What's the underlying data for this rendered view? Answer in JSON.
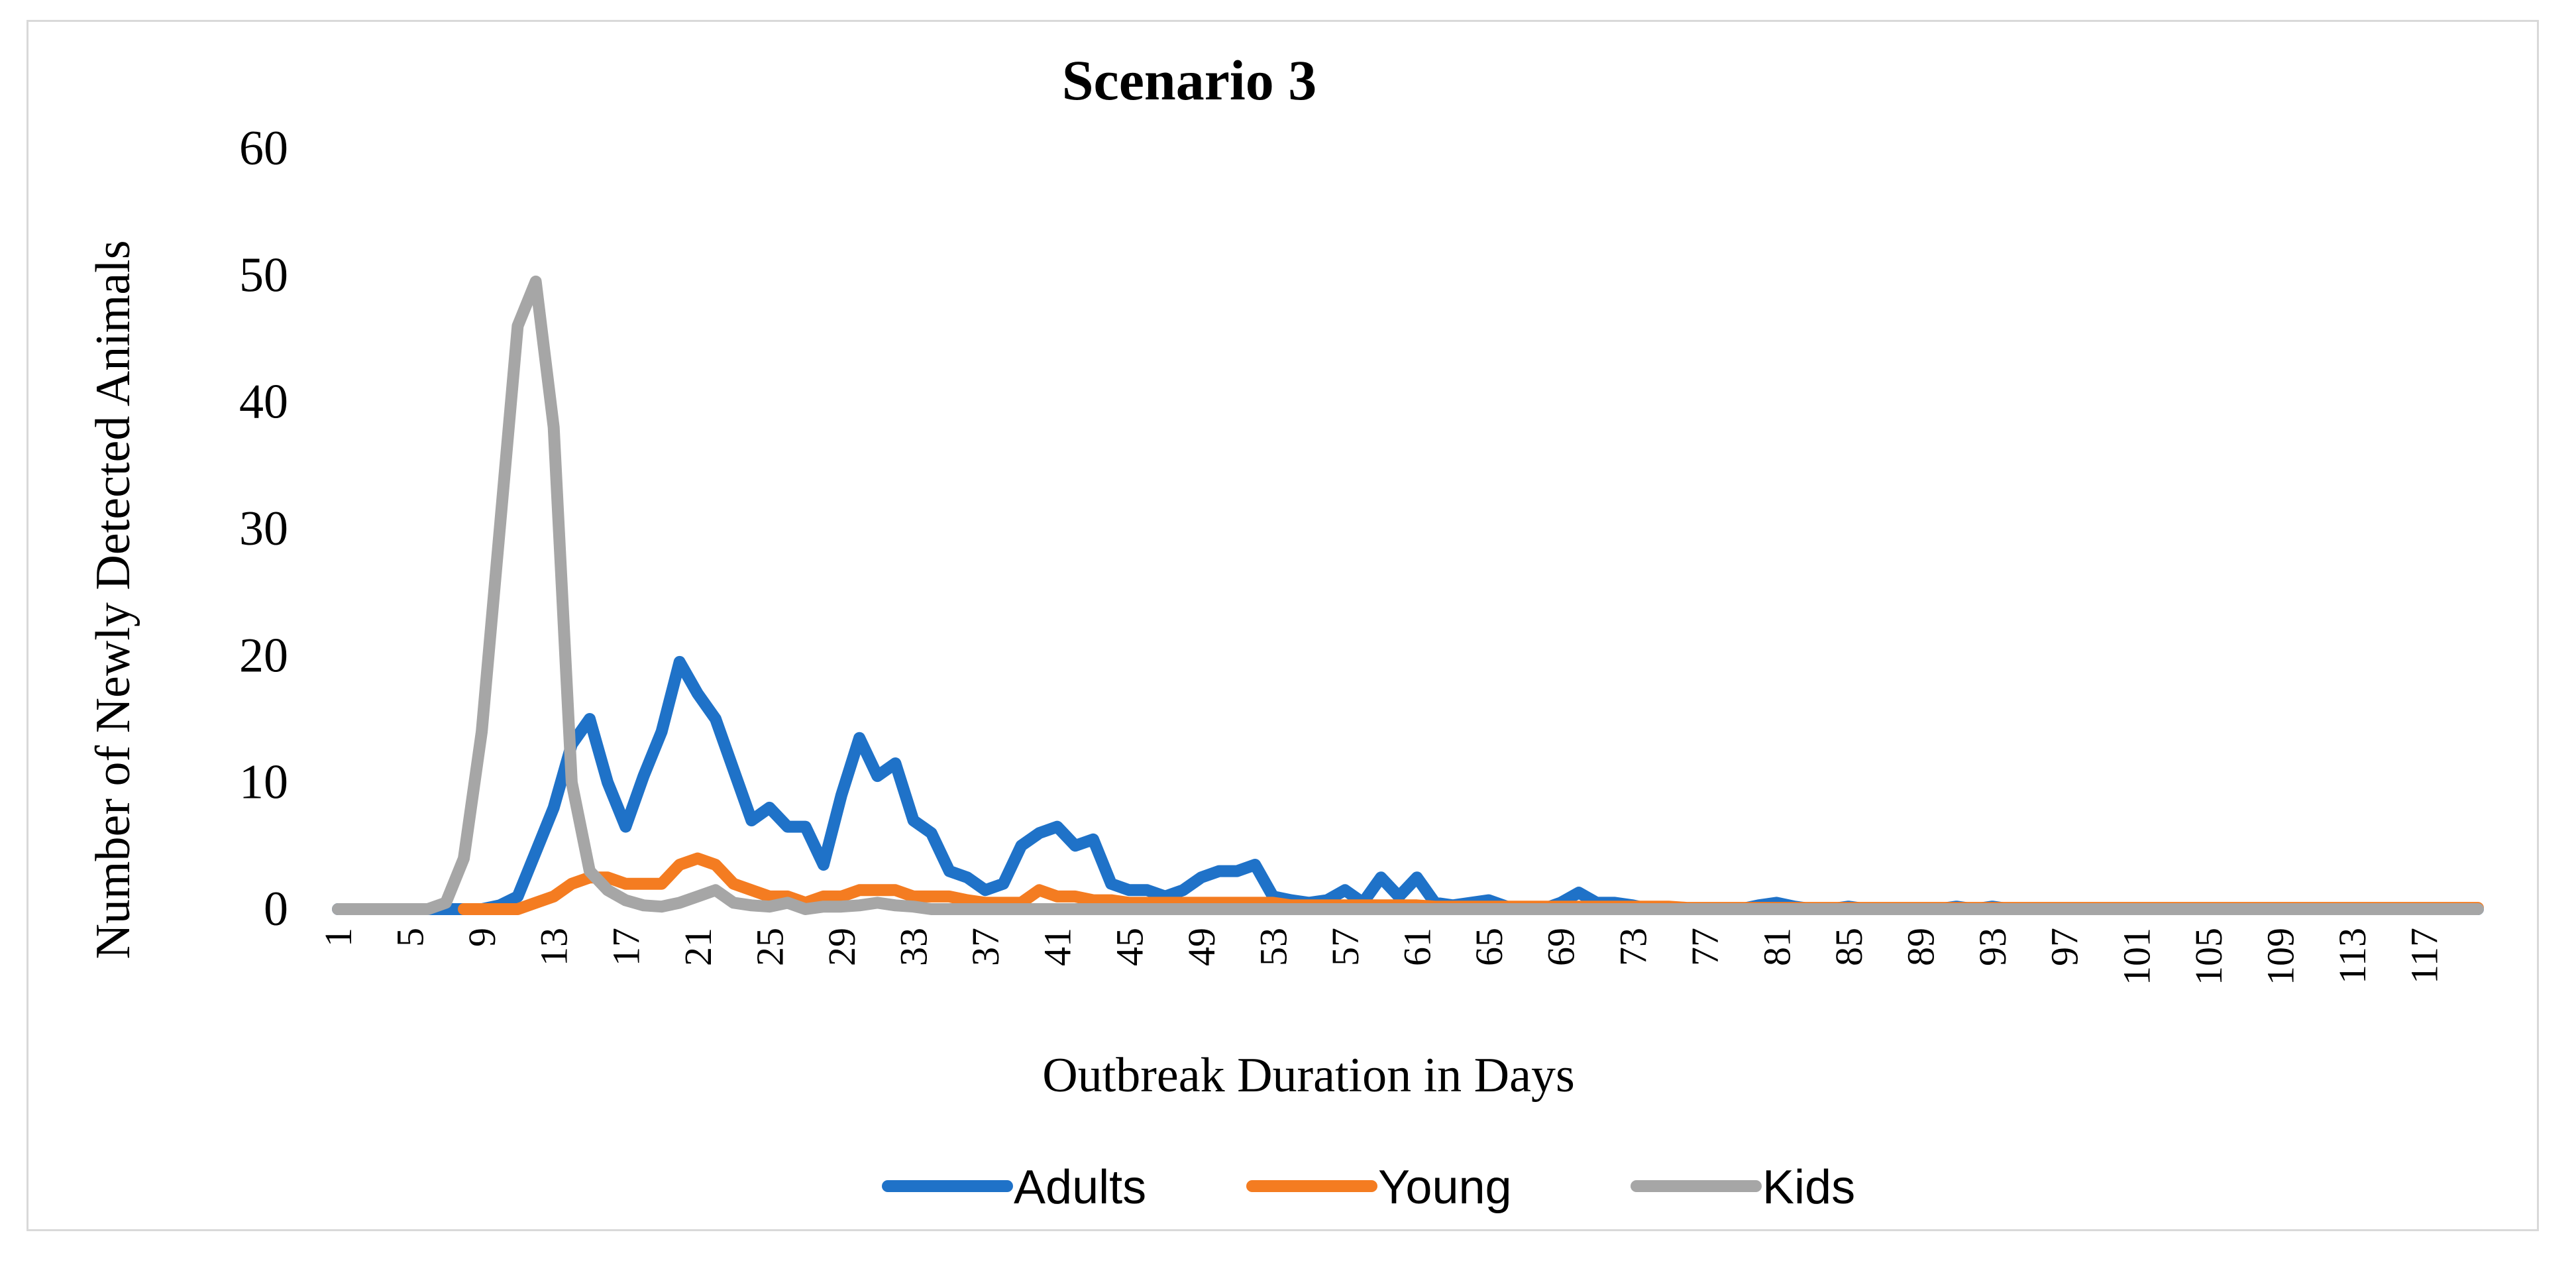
{
  "chart_data": {
    "type": "line",
    "title": "Scenario 3",
    "xlabel": "Outbreak Duration in Days",
    "ylabel": "Number of Newly Detected Animals",
    "ylim": [
      0,
      60
    ],
    "yticks": [
      0,
      10,
      20,
      30,
      40,
      50,
      60
    ],
    "x_start": 1,
    "x_end": 120,
    "xticks": [
      1,
      5,
      9,
      13,
      17,
      21,
      25,
      29,
      33,
      37,
      41,
      45,
      49,
      53,
      57,
      61,
      65,
      69,
      73,
      77,
      81,
      85,
      89,
      93,
      97,
      101,
      105,
      109,
      113,
      117
    ],
    "grid": false,
    "legend_position": "bottom",
    "colors": {
      "Adults": "#1f72c8",
      "Young": "#f47c21",
      "Kids": "#a6a6a6"
    },
    "series": [
      {
        "name": "Adults",
        "x": [
          1,
          2,
          3,
          4,
          5,
          6,
          7,
          8,
          9,
          10,
          11,
          12,
          13,
          14,
          15,
          16,
          17,
          18,
          19,
          20,
          21,
          22,
          23,
          24,
          25,
          26,
          27,
          28,
          29,
          30,
          31,
          32,
          33,
          34,
          35,
          36,
          37,
          38,
          39,
          40,
          41,
          42,
          43,
          44,
          45,
          46,
          47,
          48,
          49,
          50,
          51,
          52,
          53,
          54,
          55,
          56,
          57,
          58,
          59,
          60,
          61,
          62,
          63,
          64,
          65,
          66,
          67,
          68,
          69,
          70,
          71,
          72,
          73,
          74,
          75,
          76,
          77,
          78,
          79,
          80,
          81,
          82,
          83,
          84,
          85,
          86,
          87,
          88,
          89,
          90,
          91,
          92,
          93,
          94,
          95,
          96,
          97,
          98,
          99,
          100,
          101,
          102,
          103,
          104,
          105,
          106,
          107,
          108,
          109,
          110,
          111,
          112,
          113,
          114,
          115,
          116,
          117,
          118,
          119,
          120
        ],
        "values": [
          0,
          0,
          0,
          0,
          0,
          0,
          0,
          0,
          0,
          0.3,
          1,
          4.5,
          8,
          13,
          15,
          10,
          6.5,
          10.5,
          14,
          19.5,
          17,
          15,
          11,
          7,
          8,
          6.5,
          6.5,
          3.5,
          9,
          13.5,
          10.5,
          11.5,
          7,
          6,
          3,
          2.5,
          1.5,
          2,
          5,
          6,
          6.5,
          5,
          5.5,
          2,
          1.5,
          1.5,
          1,
          1.5,
          2.5,
          3,
          3,
          3.5,
          1,
          0.7,
          0.5,
          0.7,
          1.5,
          0.5,
          2.5,
          1,
          2.5,
          0.5,
          0.3,
          0.5,
          0.7,
          0.2,
          0,
          0,
          0.5,
          1.3,
          0.5,
          0.5,
          0.3,
          0,
          0,
          0,
          0,
          0,
          0,
          0.3,
          0.5,
          0.2,
          0,
          0,
          0.2,
          0,
          0,
          0,
          0,
          0,
          0.2,
          0,
          0.2,
          0,
          0,
          0,
          0,
          0,
          0,
          0,
          0,
          0,
          0,
          0,
          0,
          0,
          0,
          0,
          0,
          0,
          0,
          0,
          0,
          0,
          0,
          0,
          0,
          0,
          0,
          0
        ]
      },
      {
        "name": "Young",
        "x": [
          8,
          9,
          10,
          11,
          12,
          13,
          14,
          15,
          16,
          17,
          18,
          19,
          20,
          21,
          22,
          23,
          24,
          25,
          26,
          27,
          28,
          29,
          30,
          31,
          32,
          33,
          34,
          35,
          36,
          37,
          38,
          39,
          40,
          41,
          42,
          43,
          44,
          45,
          46,
          47,
          48,
          49,
          50,
          51,
          52,
          53,
          54,
          55,
          56,
          57,
          58,
          59,
          60,
          61,
          62,
          63,
          64,
          65,
          66,
          67,
          68,
          69,
          70,
          71,
          72,
          73,
          74,
          75,
          76,
          77,
          78,
          79,
          80,
          81,
          82,
          83,
          84,
          85,
          86,
          87,
          88,
          89,
          90,
          91,
          92,
          93,
          94,
          95,
          96,
          97,
          98,
          99,
          100,
          101,
          102,
          103,
          104,
          105,
          106,
          107,
          108,
          109,
          110,
          111,
          112,
          113,
          114,
          115,
          116,
          117,
          118,
          119,
          120
        ],
        "values": [
          0,
          0,
          0,
          0,
          0.5,
          1,
          2,
          2.5,
          2.5,
          2,
          2,
          2,
          3.5,
          4,
          3.5,
          2,
          1.5,
          1,
          1,
          0.5,
          1,
          1,
          1.5,
          1.5,
          1.5,
          1,
          1,
          1,
          0.7,
          0.5,
          0.5,
          0.5,
          1.5,
          1,
          1,
          0.7,
          0.7,
          0.5,
          0.5,
          0.5,
          0.5,
          0.5,
          0.5,
          0.5,
          0.5,
          0.5,
          0.3,
          0.3,
          0.3,
          0.3,
          0.3,
          0.3,
          0.3,
          0.3,
          0.2,
          0.2,
          0.2,
          0.2,
          0.2,
          0.2,
          0.2,
          0.2,
          0.2,
          0.2,
          0.2,
          0.2,
          0.2,
          0.2,
          0.1,
          0.1,
          0.1,
          0.1,
          0.1,
          0.1,
          0.1,
          0.1,
          0.1,
          0.1,
          0.1,
          0.1,
          0.1,
          0.1,
          0.1,
          0.1,
          0.1,
          0.1,
          0.1,
          0.1,
          0.1,
          0.1,
          0.1,
          0.1,
          0.1,
          0.1,
          0.1,
          0.1,
          0.1,
          0.1,
          0.1,
          0.1,
          0.1,
          0.1,
          0.1,
          0.1,
          0.1,
          0.1,
          0.1,
          0.1,
          0.1,
          0.1,
          0.1,
          0.1,
          0.1
        ]
      },
      {
        "name": "Kids",
        "x": [
          1,
          2,
          3,
          4,
          5,
          6,
          7,
          8,
          9,
          10,
          11,
          12,
          13,
          14,
          15,
          16,
          17,
          18,
          19,
          20,
          21,
          22,
          23,
          24,
          25,
          26,
          27,
          28,
          29,
          30,
          31,
          32,
          33,
          34,
          35,
          36,
          37,
          38,
          39,
          40,
          41,
          42,
          43,
          44,
          45,
          46,
          47,
          48,
          49,
          50,
          51,
          52,
          53,
          54,
          55,
          56,
          57,
          58,
          59,
          60,
          61,
          62,
          63,
          64,
          65,
          66,
          67,
          68,
          69,
          70,
          71,
          72,
          73,
          74,
          75,
          76,
          77,
          78,
          79,
          80,
          81,
          82,
          83,
          84,
          85,
          86,
          87,
          88,
          89,
          90,
          91,
          92,
          93,
          94,
          95,
          96,
          97,
          98,
          99,
          100,
          101,
          102,
          103,
          104,
          105,
          106,
          107,
          108,
          109,
          110,
          111,
          112,
          113,
          114,
          115,
          116,
          117,
          118,
          119,
          120
        ],
        "values": [
          0,
          0,
          0,
          0,
          0,
          0,
          0.5,
          4,
          14,
          30,
          46,
          49.5,
          38,
          10,
          3,
          1.5,
          0.7,
          0.3,
          0.2,
          0.5,
          1,
          1.5,
          0.5,
          0.3,
          0.2,
          0.5,
          0,
          0.2,
          0.2,
          0.3,
          0.5,
          0.3,
          0.2,
          0,
          0,
          0,
          0,
          0,
          0,
          0,
          0,
          0,
          0,
          0,
          0,
          0,
          0,
          0,
          0,
          0,
          0,
          0,
          0,
          0,
          0,
          0,
          0,
          0,
          0,
          0,
          0,
          0,
          0,
          0,
          0,
          0,
          0,
          0,
          0,
          0,
          0,
          0,
          0,
          0,
          0,
          0,
          0,
          0,
          0,
          0,
          0,
          0,
          0,
          0,
          0,
          0,
          0,
          0,
          0,
          0,
          0,
          0,
          0,
          0,
          0,
          0,
          0,
          0,
          0,
          0,
          0,
          0,
          0,
          0,
          0,
          0,
          0,
          0,
          0,
          0,
          0,
          0,
          0,
          0,
          0,
          0,
          0,
          0,
          0,
          0
        ]
      }
    ]
  }
}
